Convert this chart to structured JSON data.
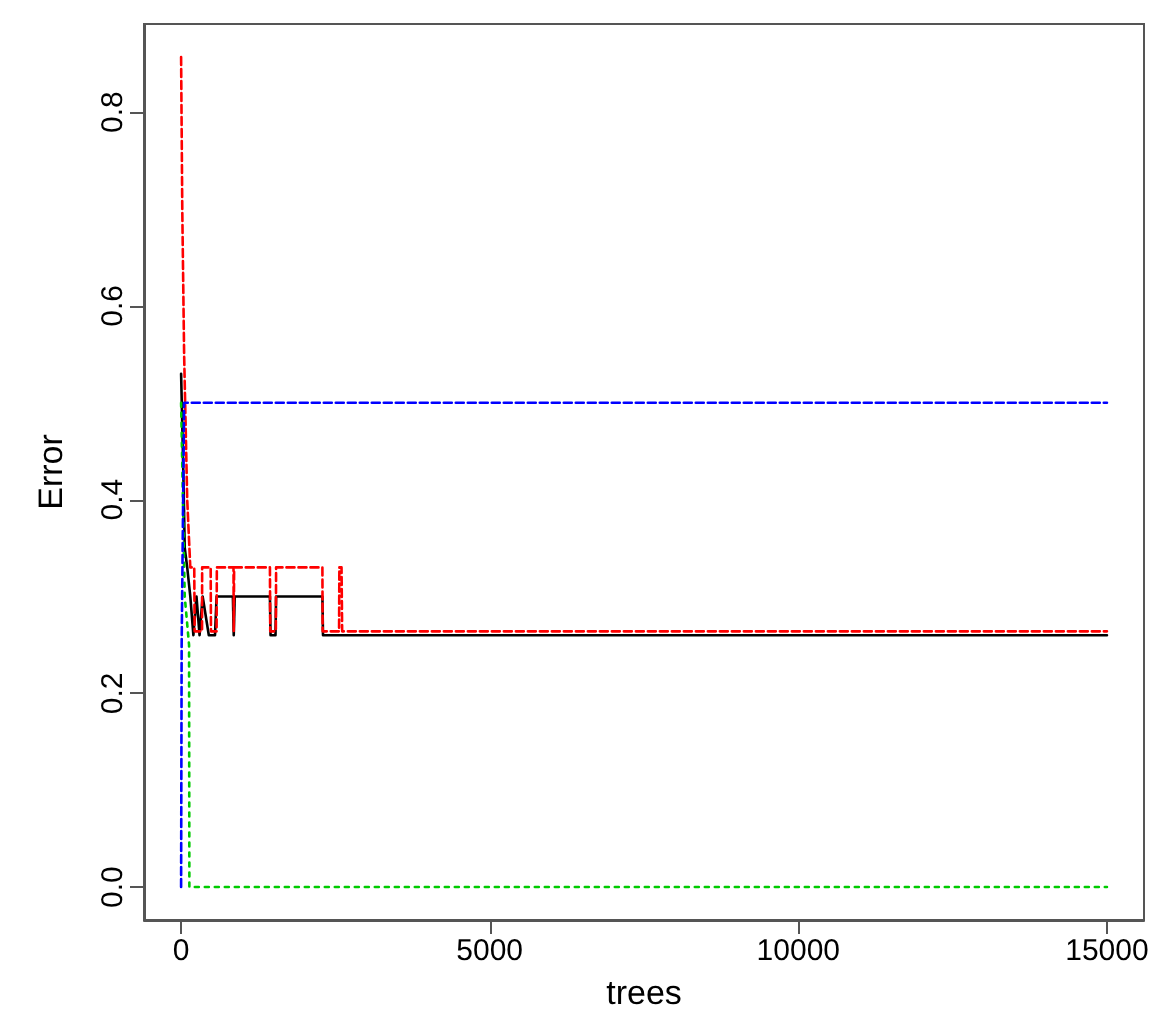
{
  "chart_data": {
    "type": "line",
    "xlabel": "trees",
    "ylabel": "Error",
    "xlim": [
      -600,
      15600
    ],
    "ylim": [
      -0.034,
      0.891
    ],
    "xticks": [
      0,
      5000,
      10000,
      15000
    ],
    "yticks": [
      {
        "value": 0,
        "label": "0.0"
      },
      {
        "value": 0.2,
        "label": "0.2"
      },
      {
        "value": 0.4,
        "label": "0.4"
      },
      {
        "value": 0.6,
        "label": "0.6"
      },
      {
        "value": 0.8,
        "label": "0.8"
      }
    ],
    "grid": false,
    "marker": "none",
    "series": [
      {
        "color": "#000000",
        "line_style": "solid",
        "x": [
          1,
          30,
          60,
          100,
          150,
          200,
          250,
          300,
          350,
          450,
          550,
          576,
          840,
          854,
          870,
          1440,
          1450,
          1530,
          1540,
          2290,
          2300,
          15000
        ],
        "values": [
          0.53,
          0.45,
          0.35,
          0.33,
          0.3,
          0.26,
          0.3,
          0.26,
          0.3,
          0.26,
          0.26,
          0.3,
          0.3,
          0.26,
          0.3,
          0.3,
          0.26,
          0.26,
          0.3,
          0.3,
          0.26,
          0.26
        ]
      },
      {
        "color": "#ff0000",
        "line_style": "dashed",
        "x": [
          1,
          20,
          50,
          100,
          150,
          214,
          220,
          340,
          342,
          480,
          485,
          576,
          580,
          850,
          854,
          860,
          1440,
          1445,
          1536,
          1540,
          2290,
          2294,
          2560,
          2565,
          2600,
          2610,
          15000
        ],
        "values": [
          0.857,
          0.7,
          0.55,
          0.4,
          0.33,
          0.33,
          0.264,
          0.264,
          0.33,
          0.33,
          0.264,
          0.264,
          0.33,
          0.33,
          0.264,
          0.33,
          0.33,
          0.264,
          0.264,
          0.33,
          0.33,
          0.264,
          0.264,
          0.33,
          0.33,
          0.264,
          0.264
        ]
      },
      {
        "color": "#00cc00",
        "line_style": "dotted",
        "x": [
          1,
          60,
          130,
          135,
          15000
        ],
        "values": [
          0.5,
          0.3,
          0.25,
          0,
          0
        ]
      },
      {
        "color": "#0000ff",
        "line_style": "dashed",
        "x": [
          1,
          10,
          50,
          15000
        ],
        "values": [
          0,
          0.25,
          0.5,
          0.5
        ]
      }
    ]
  }
}
